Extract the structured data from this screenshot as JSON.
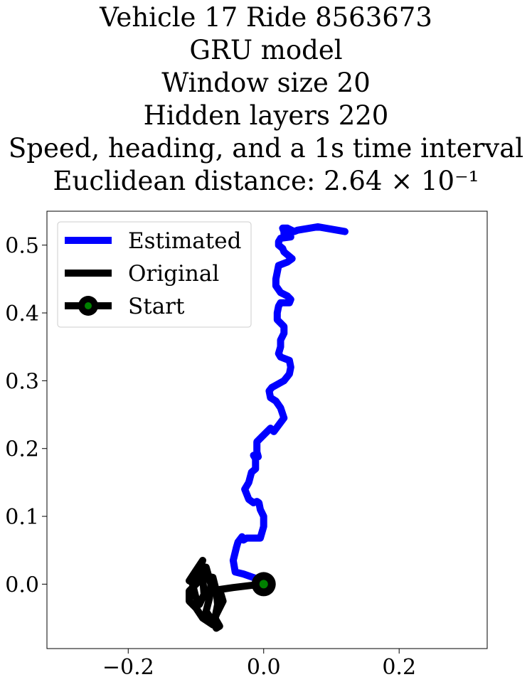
{
  "title_lines": [
    "Vehicle 17 Ride 8563673",
    "GRU model",
    "Window size 20",
    "Hidden layers 220",
    "Speed, heading, and a 1s time interval",
    "Euclidean distance: 2.64 × 10⁻¹"
  ],
  "chart_data": {
    "type": "line",
    "title": "Vehicle 17 Ride 8563673\nGRU model\nWindow size 20\nHidden layers 220\nSpeed, heading, and a 1s time interval\nEuclidean distance: 2.64 × 10⁻¹",
    "xlabel": "",
    "ylabel": "",
    "xlim": [
      -0.32,
      0.33
    ],
    "ylim": [
      -0.095,
      0.55
    ],
    "x_ticks": [
      -0.2,
      0.0,
      0.2
    ],
    "x_tick_labels": [
      "−0.2",
      "0.0",
      "0.2"
    ],
    "y_ticks": [
      0.0,
      0.1,
      0.2,
      0.3,
      0.4,
      0.5
    ],
    "y_tick_labels": [
      "0.0",
      "0.1",
      "0.2",
      "0.3",
      "0.4",
      "0.5"
    ],
    "grid": false,
    "legend_position": "top-left",
    "series": [
      {
        "name": "Estimated",
        "color": "#0000ff",
        "x": [
          0.0,
          -0.01,
          -0.03,
          -0.042,
          -0.045,
          -0.04,
          -0.038,
          -0.032,
          -0.03,
          -0.025,
          -0.005,
          0.0,
          0.0,
          -0.005,
          -0.007,
          -0.01,
          -0.015,
          -0.022,
          -0.028,
          -0.022,
          -0.018,
          -0.012,
          -0.012,
          -0.015,
          -0.008,
          -0.01,
          -0.01,
          0.0,
          0.01,
          0.015,
          0.03,
          0.025,
          0.018,
          0.01,
          0.008,
          0.012,
          0.03,
          0.038,
          0.04,
          0.038,
          0.025,
          0.022,
          0.025,
          0.025,
          0.03,
          0.03,
          0.025,
          0.02,
          0.02,
          0.022,
          0.025,
          0.038,
          0.04,
          0.035,
          0.025,
          0.018,
          0.018,
          0.02,
          0.022,
          0.035,
          0.042,
          0.03,
          0.028,
          0.022,
          0.022,
          0.025,
          0.04,
          0.035,
          0.035,
          0.03,
          0.03,
          0.028,
          0.035,
          0.045,
          0.05,
          0.08,
          0.12
        ],
        "y": [
          0.0,
          0.008,
          0.015,
          0.018,
          0.035,
          0.055,
          0.062,
          0.07,
          0.065,
          0.068,
          0.068,
          0.085,
          0.1,
          0.11,
          0.12,
          0.122,
          0.12,
          0.125,
          0.14,
          0.15,
          0.165,
          0.17,
          0.185,
          0.19,
          0.188,
          0.195,
          0.21,
          0.22,
          0.23,
          0.225,
          0.245,
          0.26,
          0.27,
          0.275,
          0.285,
          0.29,
          0.3,
          0.31,
          0.32,
          0.33,
          0.335,
          0.34,
          0.35,
          0.36,
          0.37,
          0.38,
          0.385,
          0.39,
          0.4,
          0.41,
          0.415,
          0.415,
          0.42,
          0.425,
          0.43,
          0.44,
          0.45,
          0.46,
          0.47,
          0.475,
          0.48,
          0.49,
          0.495,
          0.5,
          0.505,
          0.51,
          0.512,
          0.515,
          0.52,
          0.515,
          0.52,
          0.525,
          0.525,
          0.52,
          0.522,
          0.527,
          0.52
        ]
      },
      {
        "name": "Original",
        "color": "#000000",
        "x": [
          0.0,
          -0.02,
          -0.045,
          -0.065,
          -0.06,
          -0.07,
          -0.075,
          -0.09,
          -0.1,
          -0.11,
          -0.11,
          -0.095,
          -0.085,
          -0.075,
          -0.07,
          -0.068,
          -0.072,
          -0.065,
          -0.07,
          -0.075,
          -0.085,
          -0.08,
          -0.078,
          -0.085,
          -0.09,
          -0.088,
          -0.095,
          -0.1,
          -0.105,
          -0.095,
          -0.09,
          -0.1,
          -0.11,
          -0.1
        ],
        "y": [
          0.0,
          -0.002,
          -0.005,
          -0.008,
          -0.025,
          -0.045,
          -0.06,
          -0.05,
          -0.035,
          -0.025,
          -0.01,
          0.005,
          0.012,
          0.01,
          -0.01,
          -0.03,
          -0.05,
          -0.062,
          -0.065,
          -0.055,
          -0.04,
          -0.02,
          0.0,
          0.025,
          0.01,
          -0.015,
          -0.03,
          -0.02,
          0.0,
          0.02,
          0.035,
          0.02,
          0.005,
          0.0
        ]
      }
    ],
    "start_point": {
      "name": "Start",
      "x": 0.0,
      "y": 0.0,
      "marker_color": "#008000",
      "edge_color": "#000000"
    }
  }
}
